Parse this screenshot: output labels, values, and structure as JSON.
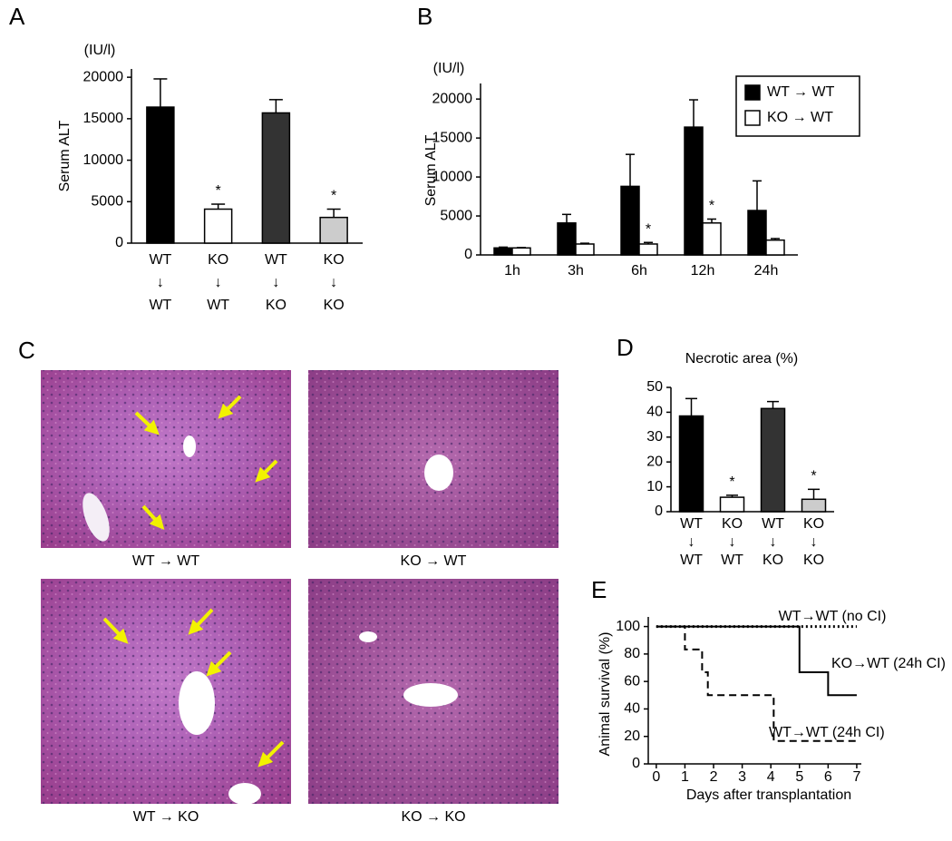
{
  "chart_data": [
    {
      "panel": "A",
      "type": "bar",
      "ylabel": "Serum ALT",
      "y_unit": "(IU/l)",
      "categories": [
        [
          "WT",
          "↓",
          "WT"
        ],
        [
          "KO",
          "↓",
          "WT"
        ],
        [
          "WT",
          "↓",
          "KO"
        ],
        [
          "KO",
          "↓",
          "KO"
        ]
      ],
      "values": [
        16400,
        4100,
        15700,
        3100
      ],
      "errors": [
        3400,
        600,
        1600,
        1000
      ],
      "colors": [
        "#000000",
        "#ffffff",
        "#333333",
        "#cccccc"
      ],
      "ylim": [
        0,
        21000
      ],
      "yticks": [
        0,
        5000,
        10000,
        15000,
        20000
      ],
      "annotations": [
        {
          "text": "*",
          "at": 1
        },
        {
          "text": "*",
          "at": 3
        }
      ]
    },
    {
      "panel": "B",
      "type": "bar",
      "ylabel": "Serum ALT",
      "y_unit": "(IU/l)",
      "categories": [
        "1h",
        "3h",
        "6h",
        "12h",
        "24h"
      ],
      "series": [
        {
          "name": "WT → WT",
          "color": "#000000",
          "values": [
            900,
            4100,
            8800,
            16400,
            5700
          ],
          "errors": [
            100,
            1100,
            4100,
            3500,
            3800
          ]
        },
        {
          "name": "KO → WT",
          "color": "#ffffff",
          "values": [
            900,
            1400,
            1400,
            4100,
            1900
          ],
          "errors": [
            50,
            100,
            200,
            500,
            200
          ]
        }
      ],
      "ylim": [
        0,
        22000
      ],
      "yticks": [
        0,
        5000,
        10000,
        15000,
        20000
      ],
      "legend": "top-right",
      "annotations": [
        {
          "text": "*",
          "series": 1,
          "at": 2
        },
        {
          "text": "*",
          "series": 1,
          "at": 3
        }
      ]
    },
    {
      "panel": "D",
      "type": "bar",
      "title": "Necrotic area (%)",
      "categories": [
        [
          "WT",
          "↓",
          "WT"
        ],
        [
          "KO",
          "↓",
          "WT"
        ],
        [
          "WT",
          "↓",
          "KO"
        ],
        [
          "KO",
          "↓",
          "KO"
        ]
      ],
      "values": [
        38.5,
        5.8,
        41.5,
        5
      ],
      "errors": [
        7,
        0.8,
        2.8,
        4
      ],
      "colors": [
        "#000000",
        "#ffffff",
        "#333333",
        "#cccccc"
      ],
      "ylim": [
        0,
        50
      ],
      "yticks": [
        0,
        10,
        20,
        30,
        40,
        50
      ],
      "annotations": [
        {
          "text": "*",
          "at": 1
        },
        {
          "text": "*",
          "at": 3
        }
      ]
    },
    {
      "panel": "E",
      "type": "line",
      "ylabel": "Animal survival (%)",
      "xlabel": "Days after transplantation",
      "xlim": [
        -0.28,
        7.16
      ],
      "xticks": [
        0,
        1,
        2,
        3,
        4,
        5,
        6,
        7
      ],
      "ylim": [
        0,
        107
      ],
      "yticks": [
        0,
        20,
        40,
        60,
        80,
        100
      ],
      "series": [
        {
          "name": "WT→WT (no CI)",
          "color": "#000000",
          "dash": "dotted",
          "x": [
            0,
            7
          ],
          "values": [
            100,
            100
          ]
        },
        {
          "name": "KO→WT (24h CI)",
          "color": "#000000",
          "dash": "solid",
          "x": [
            0,
            5,
            5,
            6,
            6,
            7
          ],
          "values": [
            100,
            100,
            66.7,
            66.7,
            50,
            50
          ]
        },
        {
          "name": "WT→WT (24h CI)",
          "color": "#000000",
          "dash": "dashed",
          "x": [
            0,
            1,
            1,
            1.6,
            1.6,
            1.8,
            1.8,
            4.1,
            4.1,
            7
          ],
          "values": [
            100,
            100,
            83.3,
            83.3,
            66.7,
            66.7,
            50,
            50,
            16.7,
            16.7
          ]
        }
      ]
    }
  ],
  "image_panel": {
    "panel": "C",
    "captions": [
      "WT → WT",
      "KO → WT",
      "WT → KO",
      "KO → KO"
    ]
  }
}
